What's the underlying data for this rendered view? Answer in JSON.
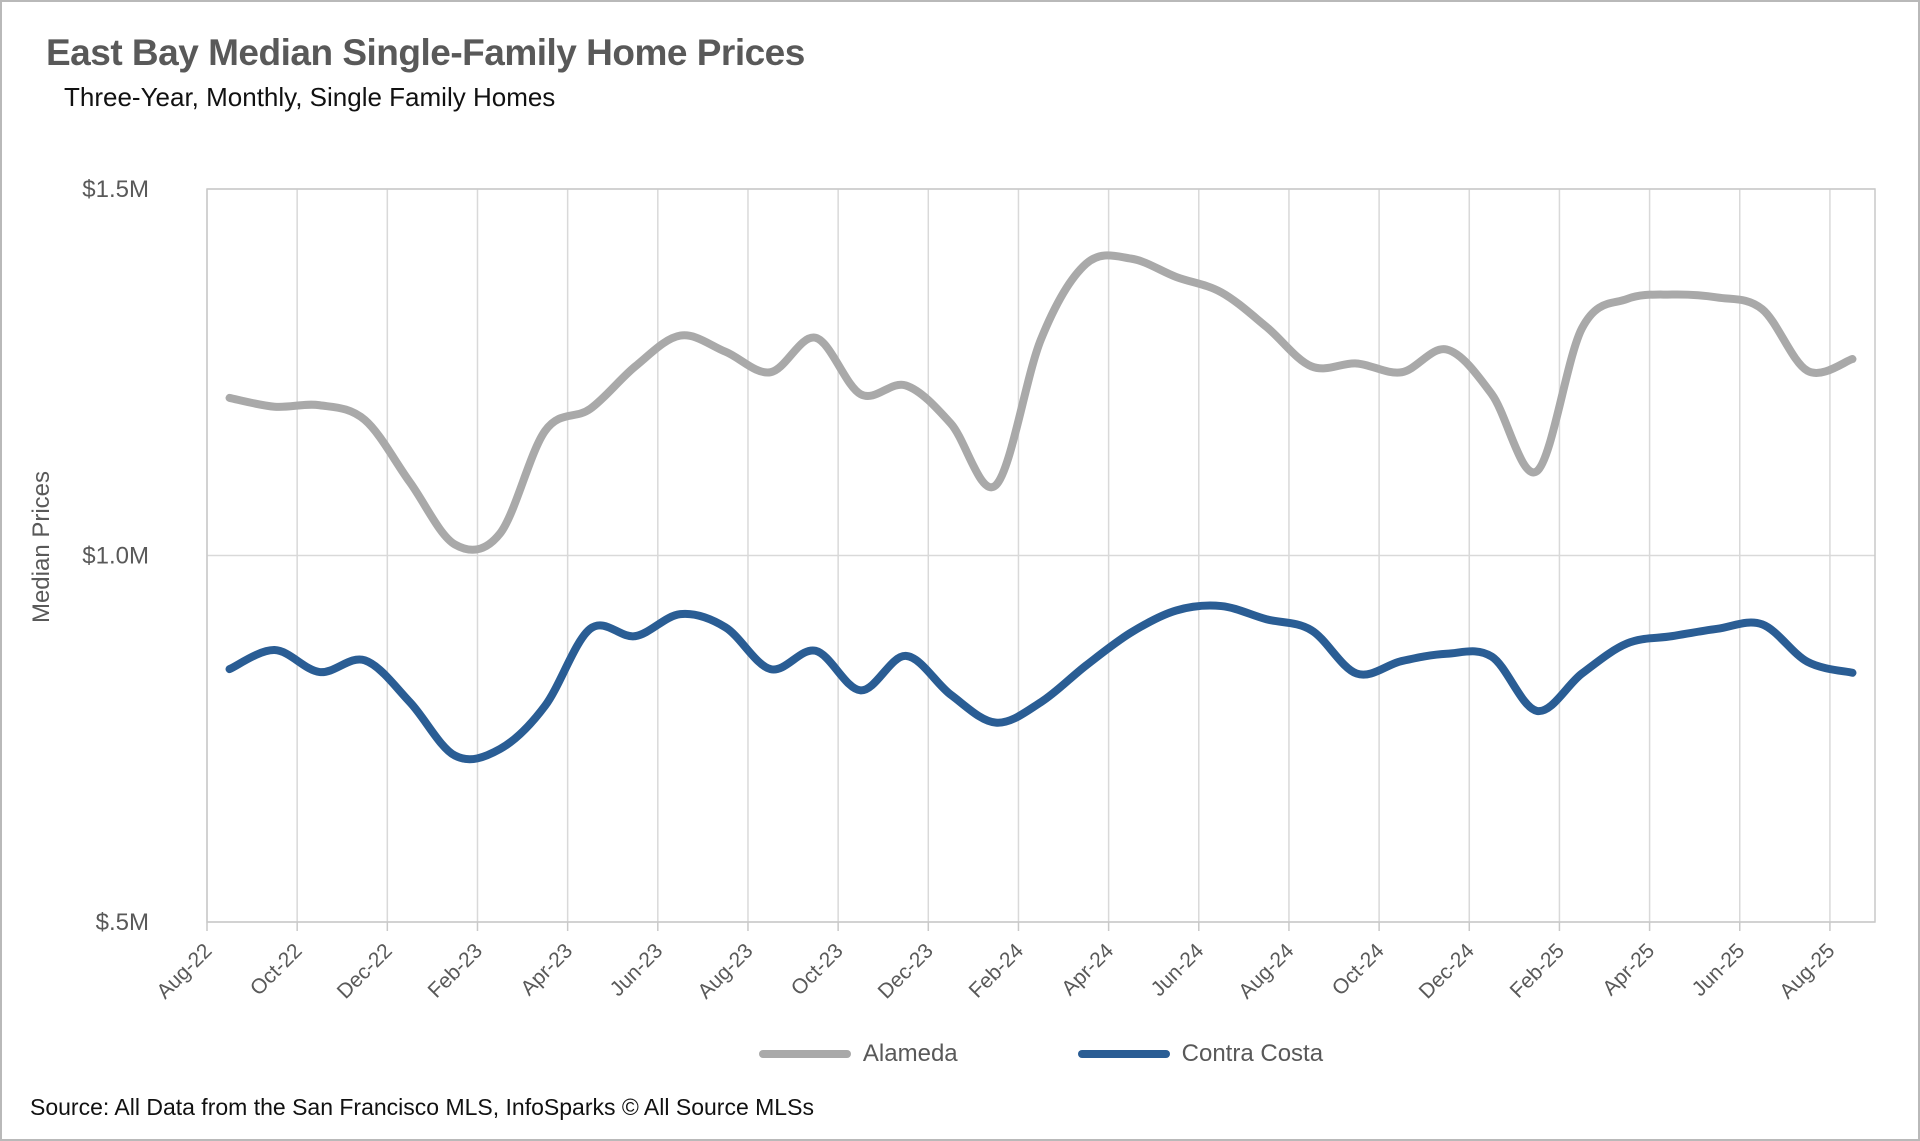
{
  "header": {
    "title": "East Bay Median Single-Family Home Prices",
    "subtitle": "Three-Year, Monthly, Single Family Homes"
  },
  "y_axis": {
    "title": "Median Prices",
    "tick_labels": [
      "$1.5M",
      "$1.0M",
      "$.5M"
    ],
    "tick_values": [
      1500000,
      1000000,
      500000
    ]
  },
  "legend": [
    {
      "label": "Alameda",
      "color": "#a9a9a9"
    },
    {
      "label": "Contra Costa",
      "color": "#2a5d94"
    }
  ],
  "footer": {
    "source": "Source: All Data from the San Francisco MLS, InfoSparks © All Source MLSs"
  },
  "colors": {
    "alameda_line": "#a9a9a9",
    "contra_costa_line": "#2a5d94",
    "gridline": "#d9d9d9",
    "axis_border": "#c9c9c9",
    "tick_text": "#595959",
    "title_text": "#595959"
  },
  "chart_data": {
    "type": "line",
    "smooth": true,
    "grid": "on",
    "legend_position": "bottom",
    "ylabel": "Median Prices",
    "xlabel": "",
    "ylim": [
      500000,
      1500000
    ],
    "x": [
      "Aug-22",
      "Sep-22",
      "Oct-22",
      "Nov-22",
      "Dec-22",
      "Jan-23",
      "Feb-23",
      "Mar-23",
      "Apr-23",
      "May-23",
      "Jun-23",
      "Jul-23",
      "Aug-23",
      "Sep-23",
      "Oct-23",
      "Nov-23",
      "Dec-23",
      "Jan-24",
      "Feb-24",
      "Mar-24",
      "Apr-24",
      "May-24",
      "Jun-24",
      "Jul-24",
      "Aug-24",
      "Sep-24",
      "Oct-24",
      "Nov-24",
      "Dec-24",
      "Jan-25",
      "Feb-25",
      "Mar-25",
      "Apr-25",
      "May-25",
      "Jun-25",
      "Jul-25",
      "Aug-25"
    ],
    "x_tick_labels": [
      "Aug-22",
      "Oct-22",
      "Dec-22",
      "Feb-23",
      "Apr-23",
      "Jun-23",
      "Aug-23",
      "Oct-23",
      "Dec-23",
      "Feb-24",
      "Apr-24",
      "Jun-24",
      "Aug-24",
      "Oct-24",
      "Dec-24",
      "Feb-25",
      "Apr-25",
      "Jun-25",
      "Aug-25"
    ],
    "x_tick_every": 2,
    "series": [
      {
        "name": "Alameda",
        "color": "#a9a9a9",
        "values": [
          1215000,
          1203000,
          1205000,
          1185000,
          1100000,
          1015000,
          1030000,
          1170000,
          1200000,
          1258000,
          1300000,
          1278000,
          1250000,
          1297000,
          1220000,
          1232000,
          1180000,
          1096000,
          1295000,
          1398000,
          1405000,
          1380000,
          1359000,
          1312000,
          1258000,
          1262000,
          1250000,
          1281000,
          1220000,
          1115000,
          1310000,
          1350000,
          1356000,
          1352000,
          1336000,
          1252000,
          1268000
        ]
      },
      {
        "name": "Contra Costa",
        "color": "#2a5d94",
        "values": [
          845000,
          871000,
          841000,
          857000,
          800000,
          727000,
          736000,
          795000,
          900000,
          890000,
          920000,
          902000,
          845000,
          870000,
          816000,
          863000,
          810000,
          772000,
          800000,
          850000,
          895000,
          925000,
          931000,
          913000,
          898000,
          839000,
          856000,
          866000,
          862000,
          788000,
          839000,
          880000,
          890000,
          900000,
          906000,
          855000,
          840000
        ]
      }
    ],
    "title": "East Bay Median Single-Family Home Prices",
    "subtitle": "Three-Year, Monthly, Single Family Homes"
  }
}
